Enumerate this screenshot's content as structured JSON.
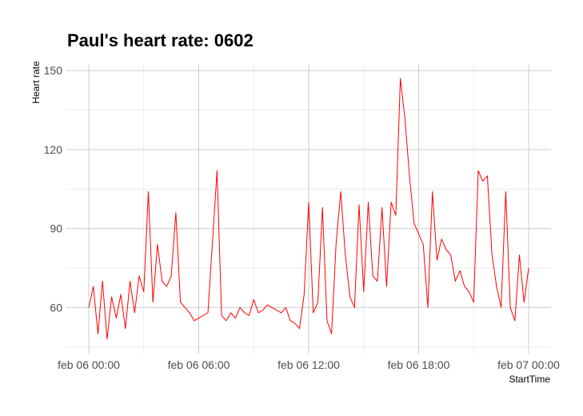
{
  "chart_data": {
    "type": "line",
    "title": "Paul's heart rate: 0602",
    "xlabel": "StartTime",
    "ylabel": "Heart rate",
    "x_type": "datetime",
    "xlim": [
      "2020-02-06T00:00",
      "2020-02-07T00:00"
    ],
    "ylim": [
      42.5,
      152.5
    ],
    "y_ticks": [
      60,
      90,
      120,
      150
    ],
    "y_tick_labels": [
      "60",
      "90",
      "120",
      "150"
    ],
    "x_ticks": [
      "2020-02-06T00:00",
      "2020-02-06T06:00",
      "2020-02-06T12:00",
      "2020-02-06T18:00",
      "2020-02-07T00:00"
    ],
    "x_tick_labels": [
      "feb 06 00:00",
      "feb 06 06:00",
      "feb 06 12:00",
      "feb 06 18:00",
      "feb 07 00:00"
    ],
    "grid": true,
    "legend": "none",
    "series": [
      {
        "color": "#ff0000",
        "x": [
          "2020-02-06T00:00",
          "2020-02-06T00:15",
          "2020-02-06T00:30",
          "2020-02-06T00:45",
          "2020-02-06T01:00",
          "2020-02-06T01:15",
          "2020-02-06T01:30",
          "2020-02-06T01:45",
          "2020-02-06T02:00",
          "2020-02-06T02:15",
          "2020-02-06T02:30",
          "2020-02-06T02:45",
          "2020-02-06T03:00",
          "2020-02-06T03:15",
          "2020-02-06T03:30",
          "2020-02-06T03:45",
          "2020-02-06T04:00",
          "2020-02-06T04:15",
          "2020-02-06T04:30",
          "2020-02-06T04:45",
          "2020-02-06T05:00",
          "2020-02-06T05:15",
          "2020-02-06T05:30",
          "2020-02-06T05:45",
          "2020-02-06T06:00",
          "2020-02-06T06:15",
          "2020-02-06T06:30",
          "2020-02-06T06:45",
          "2020-02-06T07:00",
          "2020-02-06T07:15",
          "2020-02-06T07:30",
          "2020-02-06T07:45",
          "2020-02-06T08:00",
          "2020-02-06T08:15",
          "2020-02-06T08:30",
          "2020-02-06T08:45",
          "2020-02-06T09:00",
          "2020-02-06T09:15",
          "2020-02-06T09:30",
          "2020-02-06T09:45",
          "2020-02-06T10:00",
          "2020-02-06T10:15",
          "2020-02-06T10:30",
          "2020-02-06T10:45",
          "2020-02-06T11:00",
          "2020-02-06T11:15",
          "2020-02-06T11:30",
          "2020-02-06T11:45",
          "2020-02-06T12:00",
          "2020-02-06T12:15",
          "2020-02-06T12:30",
          "2020-02-06T12:45",
          "2020-02-06T13:00",
          "2020-02-06T13:15",
          "2020-02-06T13:30",
          "2020-02-06T13:45",
          "2020-02-06T14:00",
          "2020-02-06T14:15",
          "2020-02-06T14:30",
          "2020-02-06T14:45",
          "2020-02-06T15:00",
          "2020-02-06T15:15",
          "2020-02-06T15:30",
          "2020-02-06T15:45",
          "2020-02-06T16:00",
          "2020-02-06T16:15",
          "2020-02-06T16:30",
          "2020-02-06T16:45",
          "2020-02-06T17:00",
          "2020-02-06T17:15",
          "2020-02-06T17:30",
          "2020-02-06T17:45",
          "2020-02-06T18:00",
          "2020-02-06T18:15",
          "2020-02-06T18:30",
          "2020-02-06T18:45",
          "2020-02-06T19:00",
          "2020-02-06T19:15",
          "2020-02-06T19:30",
          "2020-02-06T19:45",
          "2020-02-06T20:00",
          "2020-02-06T20:15",
          "2020-02-06T20:30",
          "2020-02-06T20:45",
          "2020-02-06T21:00",
          "2020-02-06T21:15",
          "2020-02-06T21:30",
          "2020-02-06T21:45",
          "2020-02-06T22:00",
          "2020-02-06T22:15",
          "2020-02-06T22:30",
          "2020-02-06T22:45",
          "2020-02-06T23:00",
          "2020-02-06T23:15",
          "2020-02-06T23:30",
          "2020-02-06T23:45",
          "2020-02-07T00:00"
        ],
        "y": [
          60,
          68,
          50,
          70,
          48,
          64,
          56,
          65,
          52,
          70,
          58,
          72,
          66,
          104,
          62,
          84,
          70,
          68,
          72,
          96,
          62,
          60,
          58,
          55,
          56,
          57,
          58,
          85,
          112,
          57,
          55,
          58,
          56,
          60,
          58,
          57,
          63,
          58,
          59,
          61,
          60,
          59,
          58,
          60,
          55,
          54,
          52,
          65,
          100,
          58,
          62,
          98,
          55,
          50,
          85,
          104,
          80,
          64,
          60,
          99,
          66,
          100,
          72,
          70,
          98,
          68,
          100,
          95,
          147,
          132,
          110,
          92,
          88,
          84,
          60,
          104,
          78,
          86,
          82,
          80,
          70,
          74,
          68,
          66,
          62,
          112,
          108,
          110,
          80,
          68,
          60,
          104,
          60,
          55,
          80,
          62,
          75
        ]
      }
    ]
  }
}
